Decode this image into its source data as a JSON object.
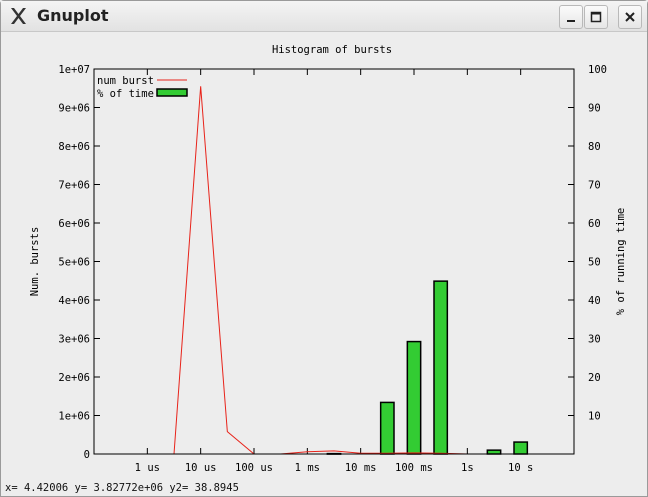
{
  "window": {
    "title": "Gnuplot",
    "app_icon": "x-icon",
    "controls": {
      "minimize": "minimize-icon",
      "maximize": "maximize-icon",
      "close": "close-icon"
    }
  },
  "statusbar": {
    "text": "x= 4.42006 y= 3.82772e+06 y2= 38.8945"
  },
  "chart_data": {
    "type": "bar",
    "title": "Histogram of bursts",
    "xlabel": "",
    "ylabel": "Num. bursts",
    "y2label": "% of running time",
    "x_scale": "log10_seconds",
    "x_tick_labels": [
      {
        "x": -6,
        "label": "1 us"
      },
      {
        "x": -5,
        "label": "10 us"
      },
      {
        "x": -4,
        "label": "100 us"
      },
      {
        "x": -3,
        "label": "1 ms"
      },
      {
        "x": -2,
        "label": "10 ms"
      },
      {
        "x": -1,
        "label": "100 ms"
      },
      {
        "x": 0,
        "label": "1s"
      },
      {
        "x": 1,
        "label": "10 s"
      }
    ],
    "y_ticks": [
      "0",
      "1e+06",
      "2e+06",
      "3e+06",
      "4e+06",
      "5e+06",
      "6e+06",
      "7e+06",
      "8e+06",
      "9e+06",
      "1e+07"
    ],
    "y2_ticks": [
      "10",
      "20",
      "30",
      "40",
      "50",
      "60",
      "70",
      "80",
      "90",
      "100"
    ],
    "ylim": [
      0,
      10000000
    ],
    "y2lim": [
      0,
      100
    ],
    "grid": false,
    "legend_position": "top-left",
    "series": [
      {
        "name": "num burst",
        "type": "line",
        "axis": "y",
        "color": "#e8231a",
        "points": [
          {
            "x": -5.5,
            "y": 0
          },
          {
            "x": -5.0,
            "y": 9550000
          },
          {
            "x": -4.5,
            "y": 580000
          },
          {
            "x": -4.0,
            "y": 0
          },
          {
            "x": -3.5,
            "y": 0
          },
          {
            "x": -3.0,
            "y": 60000
          },
          {
            "x": -2.5,
            "y": 80000
          },
          {
            "x": -2.0,
            "y": 20000
          },
          {
            "x": -1.5,
            "y": 20000
          },
          {
            "x": -1.0,
            "y": 30000
          },
          {
            "x": -0.5,
            "y": 20000
          },
          {
            "x": 0.0,
            "y": 0
          }
        ]
      },
      {
        "name": "% of time",
        "type": "bar",
        "axis": "y2",
        "color": "#33cc33",
        "bar_width_decades": 0.25,
        "points": [
          {
            "x": -2.5,
            "y": 0.1
          },
          {
            "x": -1.5,
            "y": 13.4
          },
          {
            "x": -1.0,
            "y": 29.2
          },
          {
            "x": -0.5,
            "y": 44.9
          },
          {
            "x": 0.5,
            "y": 1.0
          },
          {
            "x": 1.0,
            "y": 3.1
          }
        ]
      }
    ]
  }
}
